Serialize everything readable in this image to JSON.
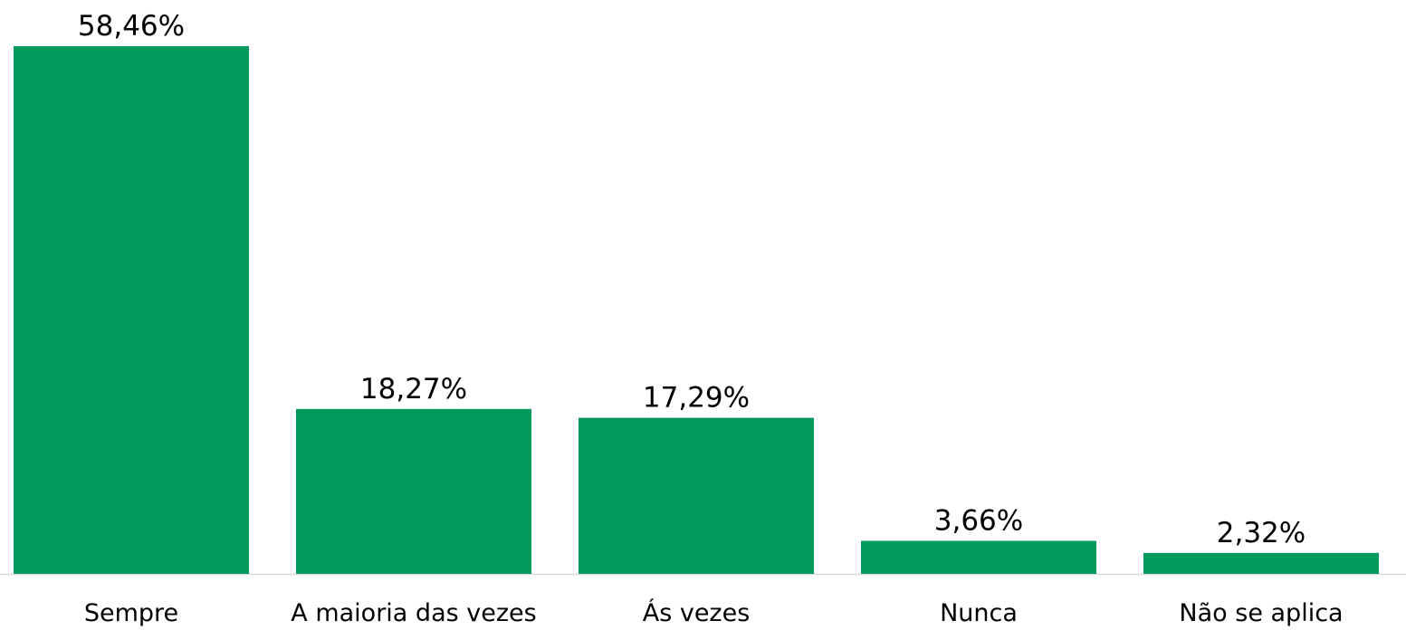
{
  "chart_data": {
    "type": "bar",
    "categories": [
      "Sempre",
      "A maioria das vezes",
      "Ás vezes",
      "Nunca",
      "Não se aplica"
    ],
    "values": [
      58.46,
      18.27,
      17.29,
      3.66,
      2.32
    ],
    "value_labels": [
      "58,46%",
      "18,27%",
      "17,29%",
      "3,66%",
      "2,32%"
    ],
    "color": "#009a5e"
  }
}
